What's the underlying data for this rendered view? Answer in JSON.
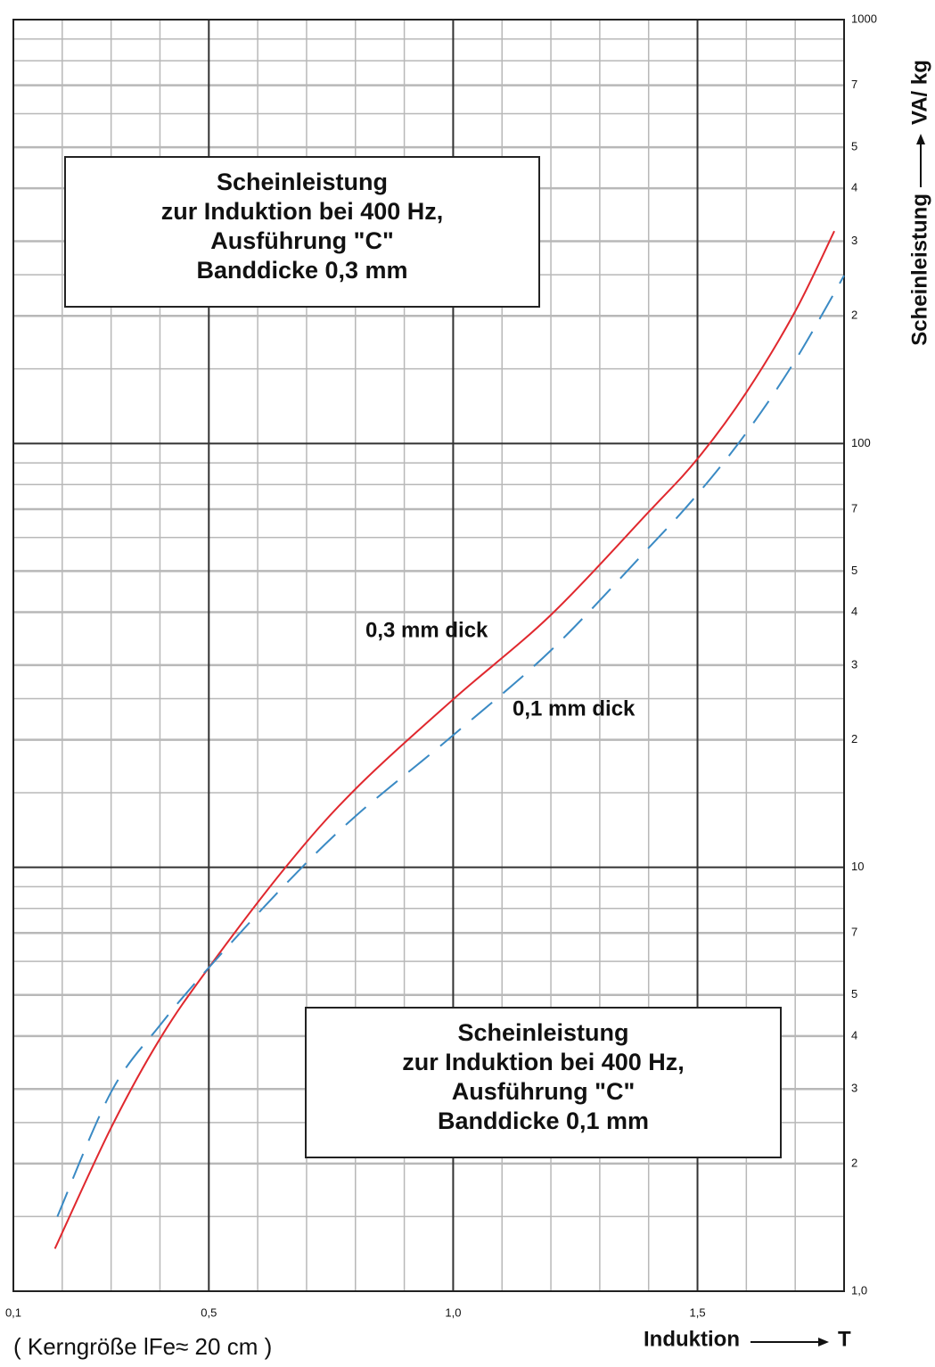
{
  "chart_data": {
    "type": "line",
    "annotations": [
      [
        "Scheinleistung",
        "zur Induktion bei 400 Hz,",
        "Ausführung \"C\"",
        "Banddicke  0,3 mm"
      ],
      [
        "Scheinleistung",
        "zur Induktion bei 400 Hz,",
        "Ausführung \"C\"",
        "Banddicke  0,1 mm"
      ]
    ],
    "curve_labels": [
      "0,3 mm dick",
      "0,1 mm dick"
    ],
    "y_label": "Scheinleistung",
    "y_unit": "VA/ kg",
    "x_label": "Induktion",
    "x_unit": "T",
    "note": "( Kerngröße lFe≈ 20 cm )",
    "series": [
      {
        "name": "0,3 mm dick",
        "color": "#e0282e",
        "dashed": false,
        "x": [
          0.185,
          0.3,
          0.4,
          0.5,
          0.66,
          0.8,
          1.0,
          1.2,
          1.4,
          1.5,
          1.6,
          1.7,
          1.78
        ],
        "values": [
          1.26,
          2.43,
          3.94,
          5.8,
          10.1,
          15.3,
          24.9,
          39.4,
          68.9,
          92,
          132,
          205,
          317
        ]
      },
      {
        "name": "0,1 mm dick",
        "color": "#3a8ac4",
        "dashed": true,
        "x": [
          0.19,
          0.3,
          0.4,
          0.5,
          0.66,
          0.8,
          1.0,
          1.2,
          1.4,
          1.5,
          1.6,
          1.7,
          1.8
        ],
        "values": [
          1.5,
          2.95,
          4.24,
          5.8,
          9.2,
          13.2,
          20.5,
          32.5,
          56.7,
          75.9,
          106,
          157,
          249
        ]
      }
    ],
    "xlim": [
      0.1,
      1.8
    ],
    "xticks": [
      {
        "value": 0.1,
        "label": "0,1"
      },
      {
        "value": 0.5,
        "label": "0,5"
      },
      {
        "value": 1.0,
        "label": "1,0"
      },
      {
        "value": 1.5,
        "label": "1,5"
      }
    ],
    "xminor_ticks": [
      0.2,
      0.3,
      0.4,
      0.6,
      0.7,
      0.8,
      0.9,
      1.1,
      1.2,
      1.3,
      1.4,
      1.6,
      1.7,
      1.8
    ],
    "ylim": [
      1,
      1000
    ],
    "ylog": true,
    "yticks": [
      {
        "value": 1,
        "label": "1,0"
      },
      2,
      3,
      4,
      5,
      7,
      10,
      {
        "value": 20,
        "label": "2"
      },
      {
        "value": 30,
        "label": "3"
      },
      {
        "value": 40,
        "label": "4"
      },
      {
        "value": 50,
        "label": "5"
      },
      {
        "value": 70,
        "label": "7"
      },
      100,
      {
        "value": 200,
        "label": "2"
      },
      {
        "value": 300,
        "label": "3"
      },
      {
        "value": 400,
        "label": "4"
      },
      {
        "value": 500,
        "label": "5"
      },
      {
        "value": 700,
        "label": "7"
      },
      1000
    ],
    "yminor_ticks": [
      1.5,
      2.5,
      6,
      8,
      9,
      15,
      25,
      60,
      80,
      90,
      150,
      250,
      600,
      800,
      900
    ],
    "grid": true
  }
}
